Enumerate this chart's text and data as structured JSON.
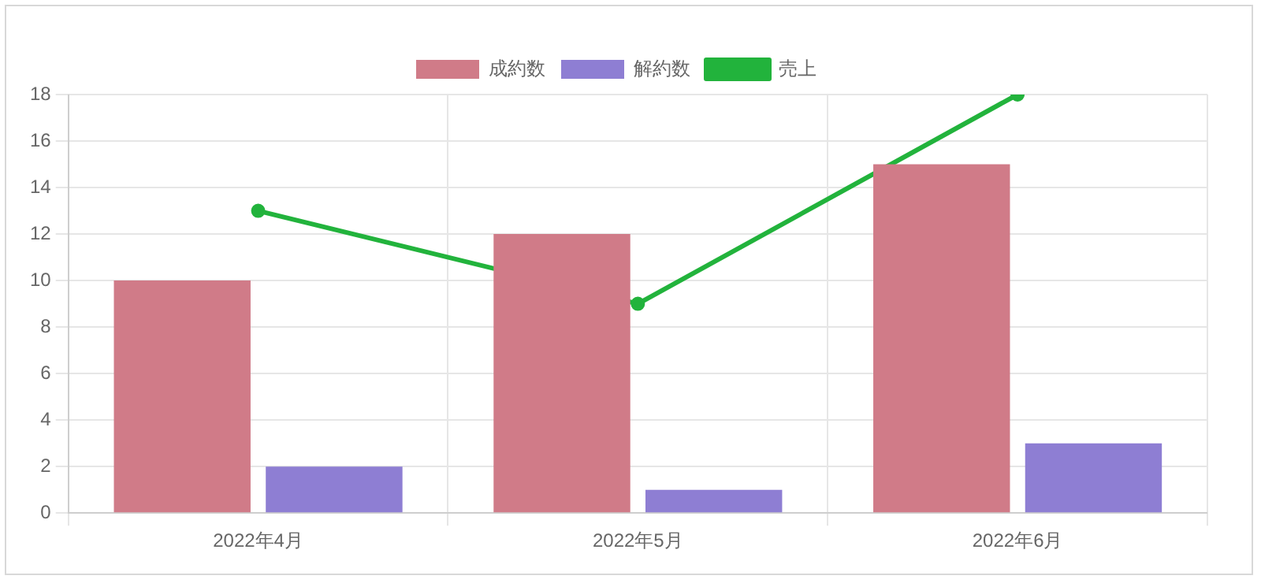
{
  "chart_data": {
    "type": "bar",
    "categories": [
      "2022年4月",
      "2022年5月",
      "2022年6月"
    ],
    "series": [
      {
        "name": "成約数",
        "color": "#d07b88",
        "values": [
          10,
          12,
          15
        ]
      },
      {
        "name": "解約数",
        "color": "#8e7ed3",
        "values": [
          2,
          1,
          3
        ]
      },
      {
        "name": "売上",
        "type": "line",
        "color": "#22b33c",
        "values": [
          13,
          9,
          18
        ]
      }
    ],
    "ylim": [
      0,
      18
    ],
    "yticks": [
      0,
      2,
      4,
      6,
      8,
      10,
      12,
      14,
      16,
      18
    ],
    "grid": true,
    "legend": "top",
    "marker": "circle",
    "line_style": "solid"
  }
}
